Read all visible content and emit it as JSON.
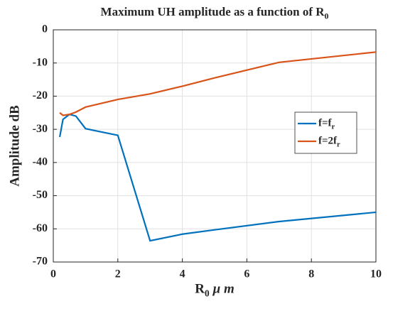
{
  "chart_data": {
    "type": "line",
    "title": {
      "text": "Maximum UH amplitude as a function of R",
      "subscript": "0"
    },
    "x_label": {
      "text": "R",
      "subscript": "0",
      "suffix": "μ m"
    },
    "y_label": "Amplitude dB",
    "x": [
      0.2,
      0.3,
      0.5,
      0.7,
      1,
      2,
      3,
      4,
      5,
      7,
      10
    ],
    "series": [
      {
        "name": "f=f",
        "name_subscript": "r",
        "color": "#0072bd",
        "values": [
          -32.3,
          -27,
          -25.5,
          -26,
          -29.8,
          -31.8,
          -63.6,
          -61.6,
          -60.3,
          -57.8,
          -55
        ]
      },
      {
        "name": "f=2f",
        "name_subscript": "r",
        "color": "#d95319",
        "values": [
          -25,
          -25.8,
          -25.5,
          -24.8,
          -23.3,
          -21,
          -19.3,
          -17,
          -14.5,
          -9.8,
          -6.7
        ]
      }
    ],
    "xlim": [
      0,
      10
    ],
    "xticks": [
      0,
      2,
      4,
      6,
      8,
      10
    ],
    "ylim": [
      -70,
      0
    ],
    "yticks": [
      -70,
      -60,
      -50,
      -40,
      -30,
      -20,
      -10,
      0
    ],
    "grid": true,
    "legend": "right"
  }
}
